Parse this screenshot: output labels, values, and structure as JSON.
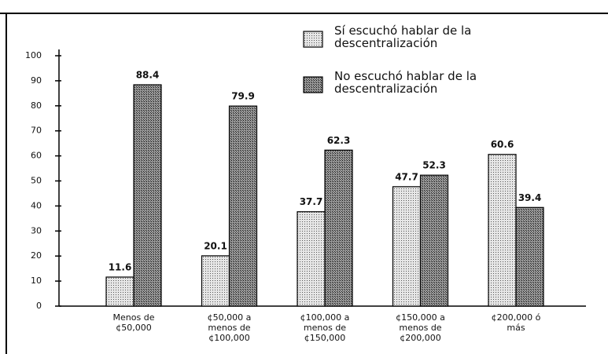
{
  "chart_data": {
    "type": "bar",
    "categories": [
      "Menos de ¢50,000",
      "¢50,000 a menos de ¢100,000",
      "¢100,000 a menos de ¢150,000",
      "¢150,000 a menos de ¢200,000",
      "¢200,000 ó más"
    ],
    "series": [
      {
        "name": "Sí escuchó hablar de la descentralización",
        "color": "#d4d4d4",
        "values": [
          11.6,
          20.1,
          37.7,
          47.7,
          60.6
        ]
      },
      {
        "name": "No escuchó hablar de la descentralización",
        "color": "#7a7a7a",
        "values": [
          88.4,
          79.9,
          62.3,
          52.3,
          39.4
        ]
      }
    ],
    "ylim": [
      0,
      100
    ],
    "yticks": [
      0,
      10,
      20,
      30,
      40,
      50,
      60,
      70,
      80,
      90,
      100
    ]
  }
}
